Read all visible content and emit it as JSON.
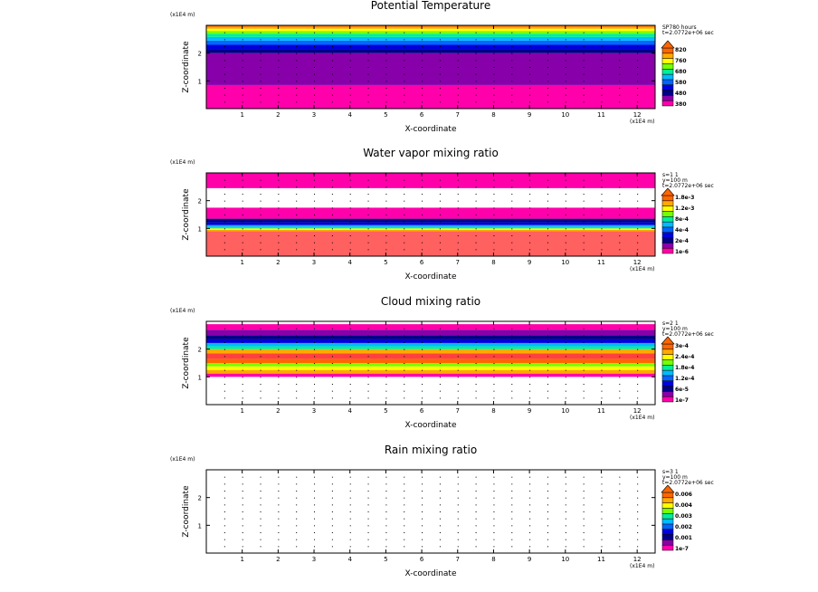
{
  "page": {
    "title": "Model output contour panels"
  },
  "chart_data": [
    {
      "type": "heatmap",
      "title": "Potential Temperature",
      "xlabel": "X-coordinate",
      "ylabel": "Z-coordinate",
      "x_unit": "(x1E4 m)",
      "z_unit": "(x1E4 m)",
      "xlim": [
        0,
        12.5
      ],
      "ylim": [
        0,
        3
      ],
      "x_ticks": [
        "1",
        "2",
        "3",
        "4",
        "5",
        "6",
        "7",
        "8",
        "9",
        "10",
        "11",
        "12"
      ],
      "y_ticks": [
        "1",
        "2"
      ],
      "meta": [
        "SP780 hours",
        "t=2.0772e+06 sec"
      ],
      "legend_labels": [
        "820",
        "760",
        "680",
        "580",
        "480",
        "380"
      ],
      "bands": [
        {
          "z0": 0.0,
          "z1": 0.85,
          "color": "#ff00aa"
        },
        {
          "z0": 0.85,
          "z1": 2.0,
          "color": "#8800aa"
        },
        {
          "z0": 2.0,
          "z1": 2.15,
          "color": "#000088"
        },
        {
          "z0": 2.15,
          "z1": 2.3,
          "color": "#0000dd"
        },
        {
          "z0": 2.3,
          "z1": 2.45,
          "color": "#0066ff"
        },
        {
          "z0": 2.45,
          "z1": 2.58,
          "color": "#00bbff"
        },
        {
          "z0": 2.58,
          "z1": 2.7,
          "color": "#00ee99"
        },
        {
          "z0": 2.7,
          "z1": 2.8,
          "color": "#77ff00"
        },
        {
          "z0": 2.8,
          "z1": 2.88,
          "color": "#ffff00"
        },
        {
          "z0": 2.88,
          "z1": 2.95,
          "color": "#ffaa00"
        },
        {
          "z0": 2.95,
          "z1": 3.0,
          "color": "#ff6600"
        }
      ],
      "legend_colors": [
        "#ff00aa",
        "#8800aa",
        "#000088",
        "#0000dd",
        "#0066ff",
        "#00bbff",
        "#00ee99",
        "#77ff00",
        "#ffff00",
        "#ffaa00",
        "#ff6600"
      ]
    },
    {
      "type": "heatmap",
      "title": "Water vapor mixing ratio",
      "xlabel": "X-coordinate",
      "ylabel": "Z-coordinate",
      "x_unit": "(x1E4 m)",
      "z_unit": "(x1E4 m)",
      "xlim": [
        0,
        12.5
      ],
      "ylim": [
        0,
        3
      ],
      "x_ticks": [
        "1",
        "2",
        "3",
        "4",
        "5",
        "6",
        "7",
        "8",
        "9",
        "10",
        "11",
        "12"
      ],
      "y_ticks": [
        "1",
        "2"
      ],
      "meta": [
        "s=1 1",
        "y=100 m",
        "t=2.0772e+06 sec"
      ],
      "legend_labels": [
        "1.8e-3",
        "1.2e-3",
        "8e-4",
        "4e-4",
        "2e-4",
        "1e-6"
      ],
      "bands": [
        {
          "z0": 0.0,
          "z1": 0.9,
          "color": "#ff6060"
        },
        {
          "z0": 0.9,
          "z1": 0.95,
          "color": "#ffaa00"
        },
        {
          "z0": 0.95,
          "z1": 1.0,
          "color": "#ffff00"
        },
        {
          "z0": 1.0,
          "z1": 1.05,
          "color": "#00ee99"
        },
        {
          "z0": 1.05,
          "z1": 1.12,
          "color": "#00bbff"
        },
        {
          "z0": 1.12,
          "z1": 1.22,
          "color": "#0000dd"
        },
        {
          "z0": 1.22,
          "z1": 1.35,
          "color": "#000088"
        },
        {
          "z0": 1.35,
          "z1": 1.75,
          "color": "#ff00aa"
        },
        {
          "z0": 1.75,
          "z1": 2.45,
          "color": "#ffffff"
        },
        {
          "z0": 2.45,
          "z1": 3.0,
          "color": "#ff00aa"
        }
      ],
      "legend_colors": [
        "#ff00aa",
        "#8800aa",
        "#000088",
        "#0000dd",
        "#0066ff",
        "#00bbff",
        "#00ee99",
        "#77ff00",
        "#ffff00",
        "#ffaa00",
        "#ff6600"
      ]
    },
    {
      "type": "heatmap",
      "title": "Cloud mixing ratio",
      "xlabel": "X-coordinate",
      "ylabel": "Z-coordinate",
      "x_unit": "(x1E4 m)",
      "z_unit": "(x1E4 m)",
      "xlim": [
        0,
        12.5
      ],
      "ylim": [
        0,
        3
      ],
      "x_ticks": [
        "1",
        "2",
        "3",
        "4",
        "5",
        "6",
        "7",
        "8",
        "9",
        "10",
        "11",
        "12"
      ],
      "y_ticks": [
        "1",
        "2"
      ],
      "meta": [
        "s=2 1",
        "y=100 m",
        "t=2.0772e+06 sec"
      ],
      "legend_labels": [
        "3e-4",
        "2.4e-4",
        "1.8e-4",
        "1.2e-4",
        "6e-5",
        "1e-7"
      ],
      "bands": [
        {
          "z0": 0.0,
          "z1": 1.0,
          "color": "#ffffff"
        },
        {
          "z0": 1.0,
          "z1": 1.12,
          "color": "#ff00aa"
        },
        {
          "z0": 1.12,
          "z1": 1.25,
          "color": "#ffaa00"
        },
        {
          "z0": 1.25,
          "z1": 1.38,
          "color": "#ffff00"
        },
        {
          "z0": 1.38,
          "z1": 1.5,
          "color": "#77ff00"
        },
        {
          "z0": 1.5,
          "z1": 1.65,
          "color": "#ff6600"
        },
        {
          "z0": 1.65,
          "z1": 1.85,
          "color": "#ff4040"
        },
        {
          "z0": 1.85,
          "z1": 2.0,
          "color": "#ffaa00"
        },
        {
          "z0": 2.0,
          "z1": 2.1,
          "color": "#00ee99"
        },
        {
          "z0": 2.1,
          "z1": 2.22,
          "color": "#00bbff"
        },
        {
          "z0": 2.22,
          "z1": 2.35,
          "color": "#0000dd"
        },
        {
          "z0": 2.35,
          "z1": 2.5,
          "color": "#000088"
        },
        {
          "z0": 2.5,
          "z1": 2.7,
          "color": "#8800aa"
        },
        {
          "z0": 2.7,
          "z1": 2.9,
          "color": "#ff00aa"
        },
        {
          "z0": 2.9,
          "z1": 3.0,
          "color": "#ffffff"
        }
      ],
      "legend_colors": [
        "#ff00aa",
        "#8800aa",
        "#000088",
        "#0000dd",
        "#0066ff",
        "#00bbff",
        "#00ee99",
        "#77ff00",
        "#ffff00",
        "#ffaa00",
        "#ff6600"
      ]
    },
    {
      "type": "heatmap",
      "title": "Rain mixing ratio",
      "xlabel": "X-coordinate",
      "ylabel": "Z-coordinate",
      "x_unit": "(x1E4 m)",
      "z_unit": "(x1E4 m)",
      "xlim": [
        0,
        12.5
      ],
      "ylim": [
        0,
        3
      ],
      "x_ticks": [
        "1",
        "2",
        "3",
        "4",
        "5",
        "6",
        "7",
        "8",
        "9",
        "10",
        "11",
        "12"
      ],
      "y_ticks": [
        "1",
        "2"
      ],
      "meta": [
        "s=3 1",
        "y=100 m",
        "t=2.0772e+06 sec"
      ],
      "legend_labels": [
        "0.006",
        "0.004",
        "0.003",
        "0.002",
        "0.001",
        "1e-7"
      ],
      "bands": [],
      "legend_colors": [
        "#ff00aa",
        "#8800aa",
        "#000088",
        "#0000dd",
        "#0066ff",
        "#00bbff",
        "#00ee99",
        "#77ff00",
        "#ffff00",
        "#ffaa00",
        "#ff6600"
      ]
    }
  ]
}
